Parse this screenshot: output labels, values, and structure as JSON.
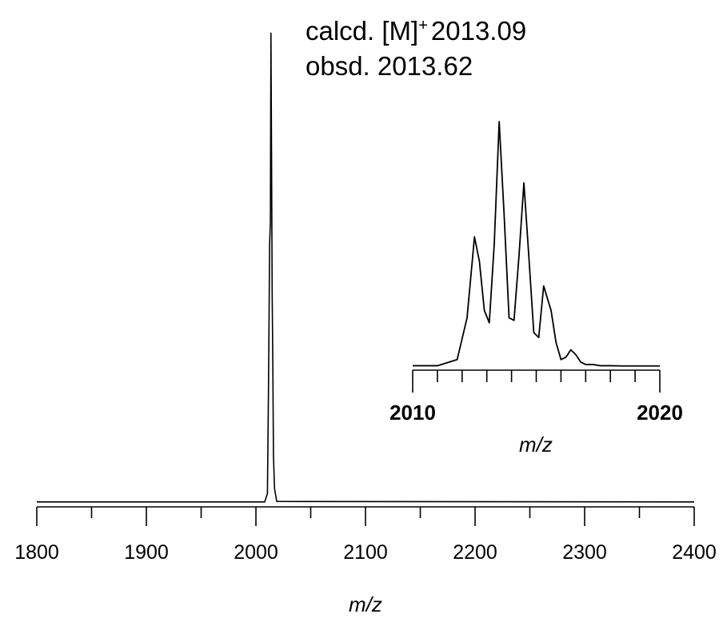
{
  "annotations": {
    "calcd_prefix": "calcd. [M]",
    "calcd_sup": "+",
    "calcd_value": "2013.09",
    "obsd": "obsd. 2013.62"
  },
  "chart_data": [
    {
      "type": "line",
      "name": "full-spectrum",
      "xlabel": "m/z",
      "ylabel": "",
      "xlim": [
        1800,
        2400
      ],
      "xticks_major": [
        1800,
        1900,
        2000,
        2100,
        2200,
        2300,
        2400
      ],
      "xticks_minor": [
        1850,
        1950,
        2050,
        2150,
        2250,
        2350
      ],
      "x": [
        1800,
        2008,
        2010.5,
        2011.5,
        2012.5,
        2013.2,
        2013.7,
        2014.3,
        2014.8,
        2015.4,
        2016.0,
        2017,
        2019,
        2400
      ],
      "y": [
        0.002,
        0.002,
        0.02,
        0.25,
        0.55,
        0.6,
        1.0,
        0.72,
        0.45,
        0.3,
        0.1,
        0.03,
        0.003,
        0.002
      ],
      "ylim": [
        0,
        1.05
      ]
    },
    {
      "type": "line",
      "name": "isotope-inset",
      "xlabel": "m/z",
      "ylabel": "",
      "xlim": [
        2010,
        2020
      ],
      "xtick_labels": [
        "2010",
        "2020"
      ],
      "xticks_major": [
        2010,
        2020
      ],
      "xticks_minor": [
        2011,
        2012,
        2013,
        2014,
        2015,
        2016,
        2017,
        2018,
        2019
      ],
      "x": [
        2010.0,
        2011.0,
        2011.8,
        2012.2,
        2012.5,
        2012.7,
        2012.9,
        2013.1,
        2013.3,
        2013.5,
        2013.7,
        2013.9,
        2014.1,
        2014.3,
        2014.5,
        2014.7,
        2014.9,
        2015.1,
        2015.3,
        2015.6,
        2015.8,
        2016.0,
        2016.2,
        2016.4,
        2016.6,
        2016.8,
        2017.0,
        2017.3,
        2017.6,
        2018.0,
        2018.5,
        2019.0,
        2020.0
      ],
      "y": [
        0.005,
        0.005,
        0.03,
        0.2,
        0.53,
        0.43,
        0.23,
        0.18,
        0.5,
        1.0,
        0.62,
        0.2,
        0.19,
        0.45,
        0.75,
        0.45,
        0.14,
        0.12,
        0.33,
        0.23,
        0.1,
        0.03,
        0.04,
        0.07,
        0.05,
        0.02,
        0.01,
        0.01,
        0.005,
        0.005,
        0.004,
        0.004,
        0.004
      ],
      "ylim": [
        0,
        1.0
      ]
    }
  ]
}
